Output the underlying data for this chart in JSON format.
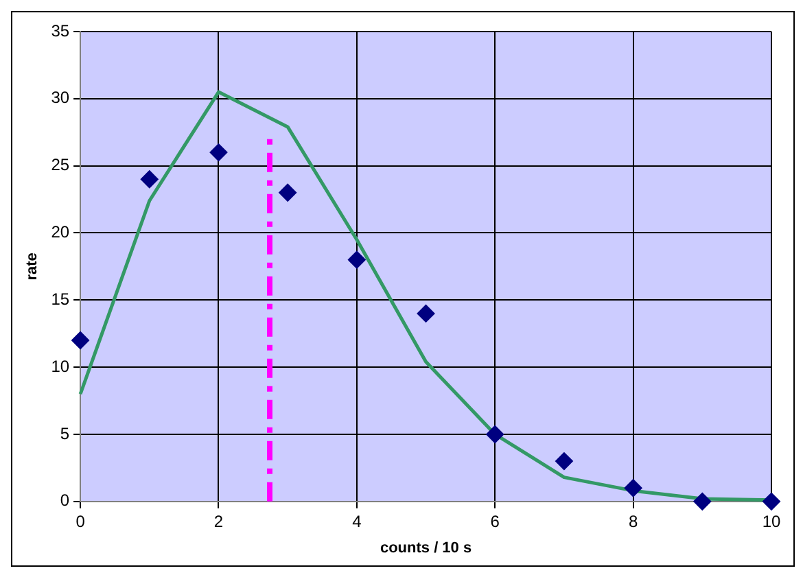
{
  "chart_data": {
    "type": "scatter",
    "xlabel": "counts / 10 s",
    "ylabel": "rate",
    "xlim": [
      0,
      10
    ],
    "xticks": [
      0,
      2,
      4,
      6,
      8,
      10
    ],
    "ylim": [
      0,
      35
    ],
    "yticks": [
      0,
      5,
      10,
      15,
      20,
      25,
      30,
      35
    ],
    "grid": true,
    "legend": false,
    "marker": "diamond",
    "series": [
      {
        "type": "scatter",
        "color": "#000080",
        "x": [
          0,
          1,
          2,
          3,
          4,
          5,
          6,
          7,
          8,
          9,
          10
        ],
        "values": [
          12,
          24,
          26,
          23,
          18,
          14,
          5,
          3,
          1,
          0,
          0
        ]
      },
      {
        "type": "line",
        "color": "#339966",
        "marker": "none",
        "x": [
          0,
          1,
          2,
          3,
          4,
          5,
          6,
          7,
          8,
          9,
          10
        ],
        "values": [
          8.0,
          22.4,
          30.5,
          27.9,
          19.5,
          10.4,
          5.0,
          1.8,
          0.8,
          0.2,
          0.1
        ]
      },
      {
        "type": "line",
        "color": "#ff00ff",
        "marker": "none",
        "line_style": "dashdot",
        "x": [
          2.74,
          2.74
        ],
        "values": [
          0,
          27.1
        ]
      }
    ]
  }
}
